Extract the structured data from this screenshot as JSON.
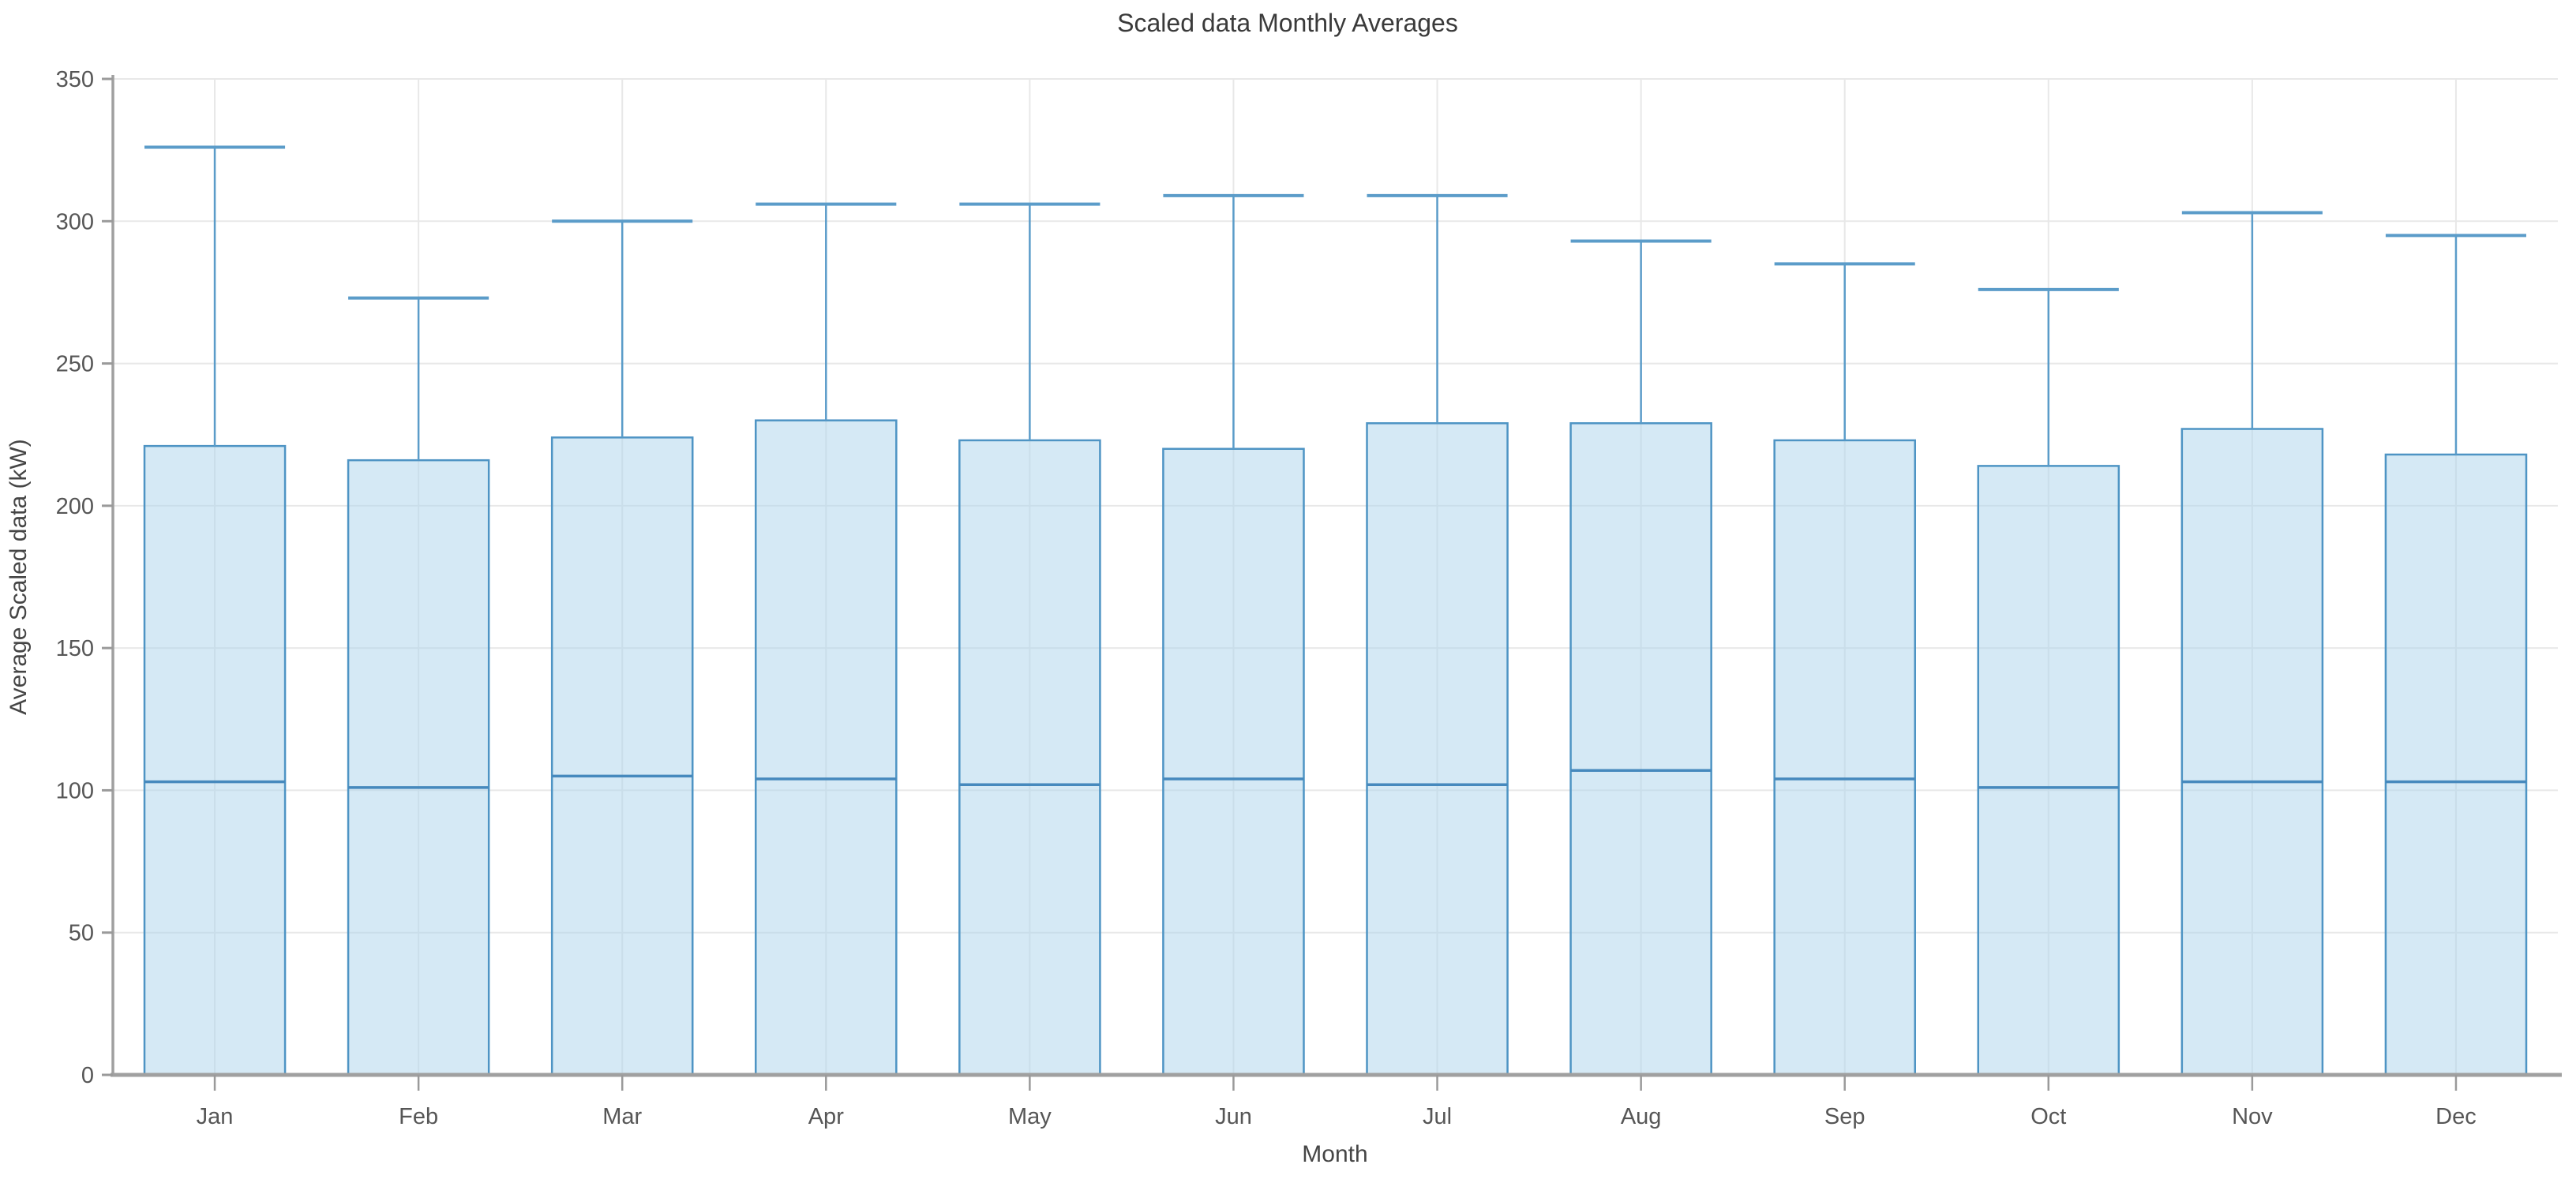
{
  "chart_data": {
    "type": "bar",
    "title": "Scaled data Monthly Averages",
    "xlabel": "Month",
    "ylabel": "Average Scaled data (kW)",
    "categories": [
      "Jan",
      "Feb",
      "Mar",
      "Apr",
      "May",
      "Jun",
      "Jul",
      "Aug",
      "Sep",
      "Oct",
      "Nov",
      "Dec"
    ],
    "series": [
      {
        "name": "bar_mean",
        "values": [
          221,
          216,
          224,
          230,
          223,
          220,
          229,
          229,
          223,
          214,
          227,
          218
        ]
      },
      {
        "name": "whisker_top",
        "values": [
          326,
          273,
          300,
          306,
          306,
          309,
          309,
          293,
          285,
          276,
          303,
          295
        ]
      },
      {
        "name": "median_line",
        "values": [
          103,
          101,
          105,
          104,
          102,
          104,
          102,
          107,
          104,
          101,
          103,
          103
        ]
      }
    ],
    "ylim": [
      0,
      350
    ],
    "yticks": [
      0,
      50,
      100,
      150,
      200,
      250,
      300,
      350
    ],
    "grid": true,
    "legend": false
  },
  "style": {
    "bar_fill": "rgba(171, 211, 235, 0.5)",
    "bar_edge": "#4e94c4",
    "whisker_color": "#5b9cc9",
    "median_color": "#4689bd",
    "grid_color": "#e8e8e8",
    "axis_color": "#a0a0a0",
    "tick_color": "#9a9a9a"
  }
}
